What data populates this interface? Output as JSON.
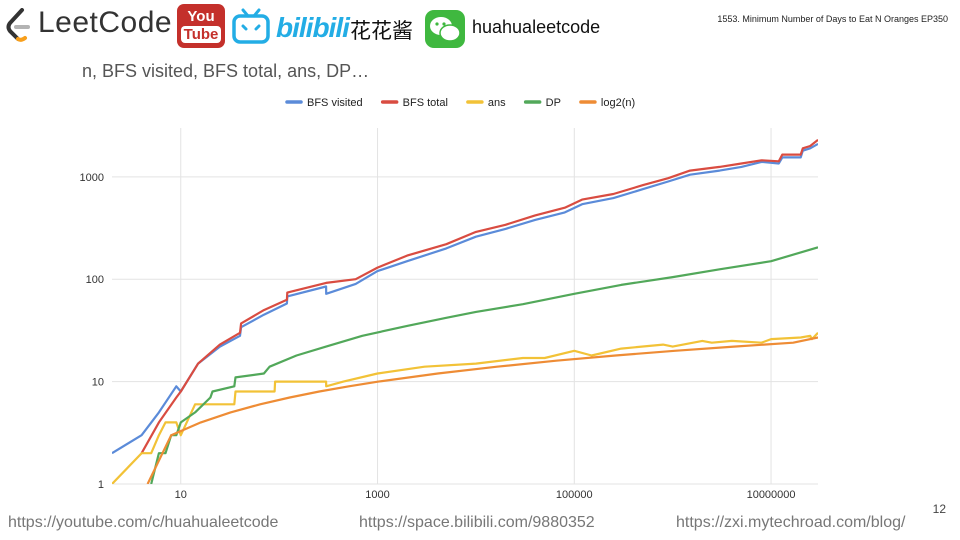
{
  "header": {
    "logo_text": "LeetCode",
    "youtube_top": "You",
    "youtube_bottom": "Tube",
    "bilibili_text": "bilibili",
    "chinese_name": "花花酱",
    "wechat_handle": "huahualeetcode",
    "episode_title": "1553. Minimum Number of Days to Eat N Oranges EP350"
  },
  "slide": {
    "subtitle": "n, BFS visited, BFS total, ans, DP…",
    "page_number": "12"
  },
  "footer": {
    "youtube_url": "https://youtube.com/c/huahualeetcode",
    "bilibili_url": "https://space.bilibili.com/9880352",
    "blog_url": "https://zxi.mytechroad.com/blog/"
  },
  "chart_data": {
    "type": "line",
    "title": "",
    "xlabel": "",
    "ylabel": "",
    "x_scale": "log",
    "y_scale": "log",
    "xlim": [
      2,
      30000000
    ],
    "ylim": [
      1,
      3000
    ],
    "x_ticks": [
      10,
      1000,
      100000,
      10000000
    ],
    "x_tick_labels": [
      "10",
      "1000",
      "100000",
      "10000000"
    ],
    "y_ticks": [
      1,
      10,
      100,
      1000
    ],
    "y_tick_labels": [
      "1",
      "10",
      "100",
      "1000"
    ],
    "grid": true,
    "legend_position": "top",
    "series": [
      {
        "name": "BFS visited",
        "color": "#5b8bd9",
        "points": [
          [
            2,
            2
          ],
          [
            4,
            3
          ],
          [
            6,
            5
          ],
          [
            9,
            9
          ],
          [
            10,
            8
          ],
          [
            15,
            15
          ],
          [
            25,
            22
          ],
          [
            40,
            28
          ],
          [
            41,
            34
          ],
          [
            70,
            45
          ],
          [
            120,
            58
          ],
          [
            121,
            68
          ],
          [
            300,
            85
          ],
          [
            301,
            72
          ],
          [
            600,
            90
          ],
          [
            1000,
            120
          ],
          [
            2000,
            150
          ],
          [
            5000,
            200
          ],
          [
            10000,
            260
          ],
          [
            20000,
            310
          ],
          [
            40000,
            380
          ],
          [
            80000,
            450
          ],
          [
            120000,
            540
          ],
          [
            250000,
            620
          ],
          [
            500000,
            760
          ],
          [
            900000,
            900
          ],
          [
            1500000,
            1050
          ],
          [
            3000000,
            1150
          ],
          [
            5000000,
            1250
          ],
          [
            8000000,
            1400
          ],
          [
            12000000,
            1350
          ],
          [
            13000000,
            1550
          ],
          [
            20000000,
            1550
          ],
          [
            21000000,
            1800
          ],
          [
            25000000,
            1900
          ],
          [
            30000000,
            2100
          ]
        ]
      },
      {
        "name": "BFS total",
        "color": "#d94c41",
        "points": [
          [
            4,
            2
          ],
          [
            6,
            4
          ],
          [
            9,
            7
          ],
          [
            10,
            8
          ],
          [
            15,
            15
          ],
          [
            25,
            23
          ],
          [
            40,
            30
          ],
          [
            41,
            37
          ],
          [
            70,
            50
          ],
          [
            120,
            63
          ],
          [
            121,
            74
          ],
          [
            300,
            92
          ],
          [
            600,
            100
          ],
          [
            1000,
            130
          ],
          [
            2000,
            170
          ],
          [
            5000,
            220
          ],
          [
            10000,
            290
          ],
          [
            20000,
            340
          ],
          [
            40000,
            420
          ],
          [
            80000,
            500
          ],
          [
            120000,
            600
          ],
          [
            250000,
            680
          ],
          [
            500000,
            830
          ],
          [
            900000,
            970
          ],
          [
            1500000,
            1150
          ],
          [
            3000000,
            1250
          ],
          [
            5000000,
            1350
          ],
          [
            8000000,
            1450
          ],
          [
            12000000,
            1420
          ],
          [
            13000000,
            1650
          ],
          [
            20000000,
            1650
          ],
          [
            21000000,
            1900
          ],
          [
            25000000,
            2000
          ],
          [
            30000000,
            2300
          ]
        ]
      },
      {
        "name": "ans",
        "color": "#f2c237",
        "points": [
          [
            2,
            1
          ],
          [
            4,
            2
          ],
          [
            5,
            2
          ],
          [
            6,
            3
          ],
          [
            7,
            4
          ],
          [
            9,
            4
          ],
          [
            10,
            3
          ],
          [
            14,
            6
          ],
          [
            35,
            6
          ],
          [
            36,
            8
          ],
          [
            90,
            8
          ],
          [
            91,
            10
          ],
          [
            300,
            10
          ],
          [
            301,
            9
          ],
          [
            450,
            10
          ],
          [
            1000,
            12
          ],
          [
            3000,
            14
          ],
          [
            10000,
            15
          ],
          [
            30000,
            17
          ],
          [
            50000,
            17
          ],
          [
            100000,
            20
          ],
          [
            150000,
            18
          ],
          [
            300000,
            21
          ],
          [
            800000,
            23
          ],
          [
            1000000,
            22
          ],
          [
            2000000,
            25
          ],
          [
            2500000,
            24
          ],
          [
            4000000,
            25
          ],
          [
            8000000,
            24
          ],
          [
            10000000,
            26
          ],
          [
            20000000,
            27
          ],
          [
            25000000,
            28
          ],
          [
            26000000,
            26
          ],
          [
            30000000,
            30
          ]
        ]
      },
      {
        "name": "DP",
        "color": "#52a85a",
        "points": [
          [
            5,
            1
          ],
          [
            6,
            2
          ],
          [
            7,
            2
          ],
          [
            8,
            3
          ],
          [
            9,
            3
          ],
          [
            10,
            4
          ],
          [
            14,
            5
          ],
          [
            20,
            7
          ],
          [
            21,
            8
          ],
          [
            35,
            9
          ],
          [
            36,
            11
          ],
          [
            70,
            12
          ],
          [
            80,
            14
          ],
          [
            150,
            18
          ],
          [
            300,
            22
          ],
          [
            700,
            28
          ],
          [
            2000,
            35
          ],
          [
            5000,
            42
          ],
          [
            10000,
            48
          ],
          [
            30000,
            57
          ],
          [
            100000,
            72
          ],
          [
            300000,
            88
          ],
          [
            1000000,
            105
          ],
          [
            3000000,
            125
          ],
          [
            10000000,
            150
          ],
          [
            30000000,
            205
          ]
        ]
      },
      {
        "name": "log2(n)",
        "color": "#ee8c35",
        "points": [
          [
            4.6,
            1
          ],
          [
            8,
            3
          ],
          [
            16,
            4
          ],
          [
            32,
            5
          ],
          [
            64,
            6
          ],
          [
            128,
            7
          ],
          [
            256,
            8
          ],
          [
            512,
            9
          ],
          [
            1024,
            10
          ],
          [
            4096,
            12
          ],
          [
            16384,
            14
          ],
          [
            65536,
            16
          ],
          [
            262144,
            18
          ],
          [
            1048576,
            20
          ],
          [
            4194304,
            22
          ],
          [
            16777216,
            24
          ],
          [
            30000000,
            27
          ]
        ]
      }
    ]
  }
}
